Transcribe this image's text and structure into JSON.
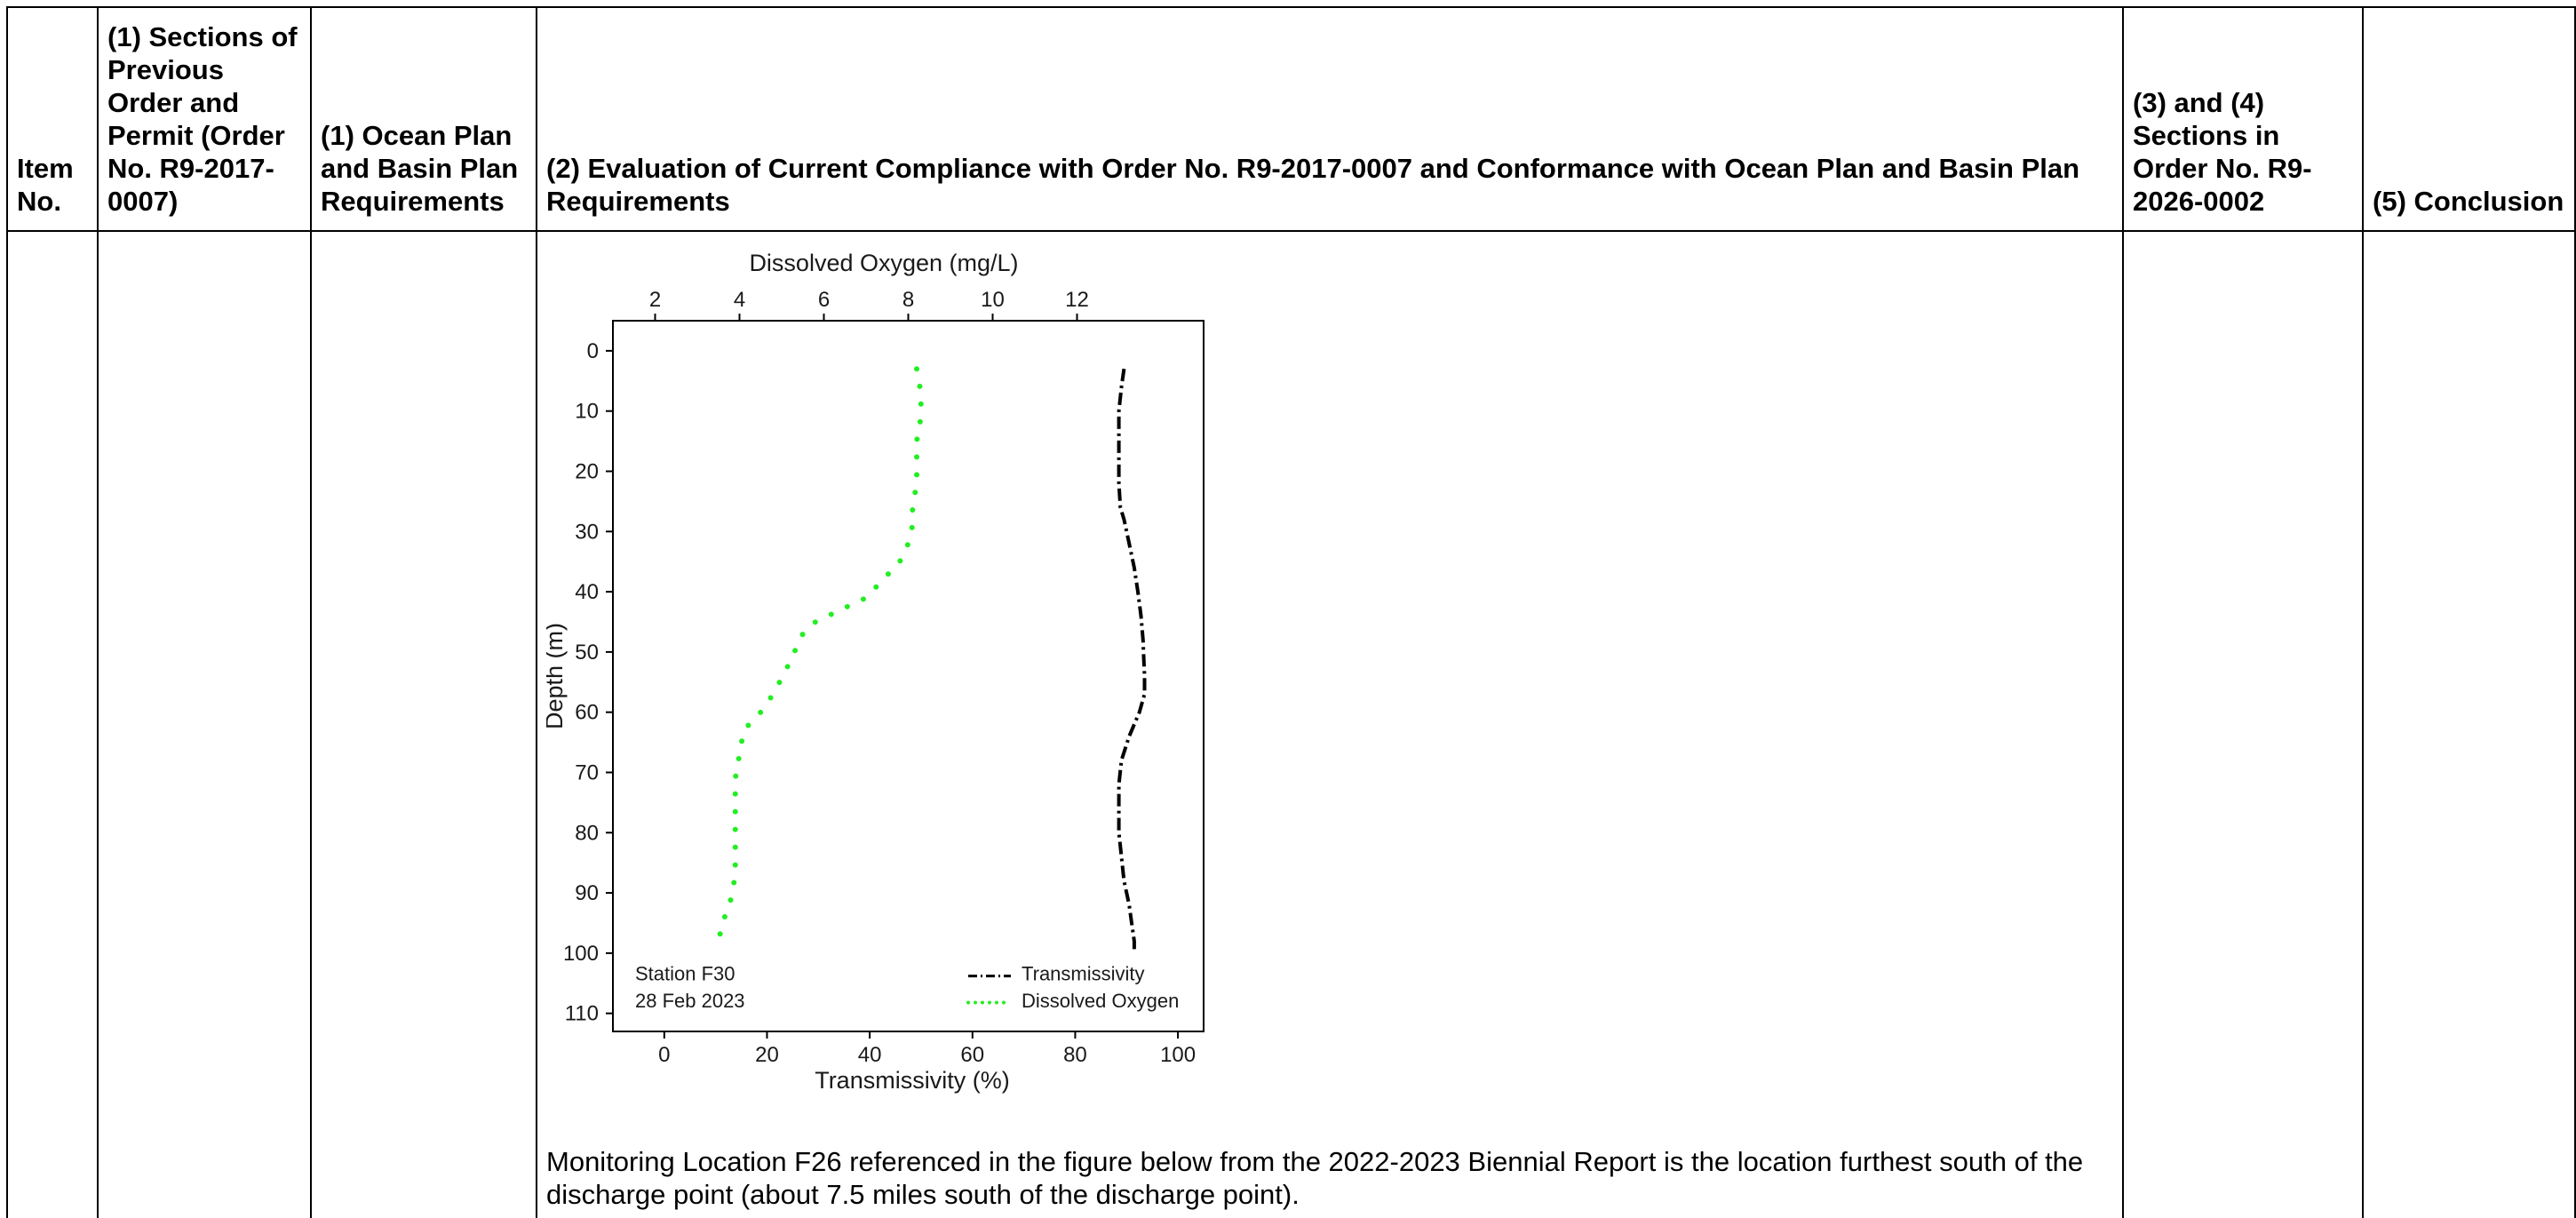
{
  "headers": [
    "Item No.",
    "(1) Sections of Previous Order and Permit (Order No. R9-2017-0007)",
    "(1) Ocean Plan and Basin Plan Requirements",
    "(2) Evaluation of Current Compliance with Order No. R9-2017-0007 and Conformance with Ocean Plan and Basin Plan Requirements",
    "(3) and (4) Sections in Order No. R9-2026-0002",
    "(5) Conclusion"
  ],
  "paragraph": "Monitoring Location F26 referenced in the figure below from the 2022-2023 Biennial Report is the location furthest south of the discharge point (about 7.5 miles south of the discharge point).",
  "chart_data": {
    "type": "line",
    "top_axis": {
      "label": "Dissolved Oxygen (mg/L)",
      "ticks": [
        "2",
        "4",
        "6",
        "8",
        "10",
        "12"
      ],
      "range": [
        1,
        15
      ]
    },
    "bottom_axis": {
      "label": "Transmissivity (%)",
      "ticks": [
        "0",
        "20",
        "40",
        "60",
        "80",
        "100"
      ],
      "range": [
        -10,
        105
      ]
    },
    "y_axis": {
      "label": "Depth (m)",
      "ticks": [
        "0",
        "10",
        "20",
        "30",
        "40",
        "50",
        "60",
        "70",
        "80",
        "90",
        "100",
        "110"
      ],
      "range": [
        -5,
        113
      ],
      "inverted": true
    },
    "annotation": {
      "station": "Station F30",
      "date": "28 Feb 2023"
    },
    "series": [
      {
        "name": "Transmissivity",
        "axis": "bottom",
        "color": "#000000",
        "style": "dashdot",
        "x": [
          89.5,
          89,
          88.5,
          88.5,
          88.5,
          88.5,
          88.8,
          89.5,
          90.5,
          91.5,
          92.2,
          92.8,
          93.2,
          93.3,
          93.5,
          93.5,
          92.5,
          90.5,
          89,
          88.5,
          88.5,
          88.5,
          89,
          89.5,
          90.5,
          91,
          91.5,
          91.5
        ],
        "y": [
          3,
          6,
          10,
          14,
          18,
          22,
          26,
          28,
          32,
          36,
          40,
          44,
          48,
          50,
          54,
          57,
          60,
          64,
          68,
          72,
          76,
          80,
          84,
          88,
          92,
          95,
          98,
          99.5
        ]
      },
      {
        "name": "Dissolved Oxygen",
        "axis": "top",
        "color": "#22ee22",
        "style": "dotted",
        "x": [
          8.2,
          8.3,
          8.3,
          8.2,
          8.2,
          8.2,
          8.1,
          8.1,
          8.0,
          7.8,
          7.4,
          7.0,
          6.4,
          5.8,
          5.5,
          5.3,
          5.1,
          4.8,
          4.5,
          4.1,
          4.0,
          3.9,
          3.9,
          3.9,
          3.9,
          3.9,
          3.8,
          3.6,
          3.5
        ],
        "y": [
          3,
          7,
          11,
          15,
          19,
          22,
          26,
          29,
          32,
          35,
          38,
          41,
          43,
          45,
          47,
          50,
          53,
          57,
          60,
          63,
          67,
          71,
          75,
          79,
          83,
          87,
          91,
          95,
          98
        ]
      }
    ]
  }
}
